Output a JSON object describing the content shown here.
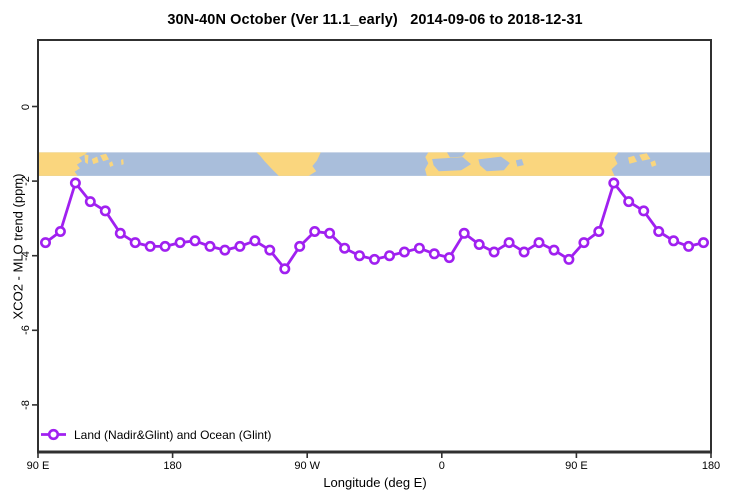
{
  "title": "30N-40N October (Ver 11.1_early)   2014-09-06 to 2018-12-31",
  "legend": {
    "label": "Land (Nadir&Glint) and Ocean (Glint)"
  },
  "chart_data": {
    "type": "line",
    "title": "30N-40N October (Ver 11.1_early)   2014-09-06 to 2018-12-31",
    "xlabel": "Longitude (deg E)",
    "ylabel": "XCO2 - MLO trend (ppm)",
    "grid": false,
    "legend_position": "bottom-left-inside",
    "x_axis": {
      "description": "Longitude axis starting at 90E, wrapping eastward 450 degrees to 180",
      "start_longitude": "90E",
      "span_deg": 450,
      "tick_positions_deg": [
        0,
        90,
        180,
        270,
        360,
        450
      ],
      "tick_labels": [
        "90 E",
        "180",
        "90 W",
        "0",
        "90 E",
        "180"
      ]
    },
    "y_axis": {
      "min": -9.25,
      "max": 1.75,
      "tick_values": [
        0,
        -2,
        -4,
        -6,
        -8
      ],
      "tick_labels": [
        "0",
        "-2",
        "-4",
        "-6",
        "-8"
      ]
    },
    "series": [
      {
        "name": "Land (Nadir&Glint) and Ocean (Glint)",
        "color": "#A020F0",
        "marker": "open-circle",
        "axis_deg_start": 5,
        "axis_deg_step": 10,
        "lon_labels": [
          "95E",
          "105E",
          "115E",
          "125E",
          "135E",
          "145E",
          "155E",
          "165E",
          "175E",
          "175W",
          "165W",
          "155W",
          "145W",
          "135W",
          "125W",
          "115W",
          "105W",
          "95W",
          "85W",
          "75W",
          "65W",
          "55W",
          "45W",
          "35W",
          "25W",
          "15W",
          "5W",
          "5E",
          "15E",
          "25E",
          "35E",
          "45E",
          "55E",
          "65E",
          "75E",
          "85E",
          "95E",
          "105E",
          "115E",
          "125E",
          "135E",
          "145E",
          "155E",
          "165E",
          "175E"
        ],
        "values": [
          -3.65,
          -3.35,
          -2.05,
          -2.55,
          -2.8,
          -3.4,
          -3.65,
          -3.75,
          -3.75,
          -3.65,
          -3.6,
          -3.75,
          -3.85,
          -3.75,
          -3.6,
          -3.85,
          -4.35,
          -3.75,
          -3.35,
          -3.4,
          -3.8,
          -4.0,
          -4.1,
          -4.0,
          -3.9,
          -3.8,
          -3.95,
          -4.05,
          -3.4,
          -3.7,
          -3.9,
          -3.65,
          -3.9,
          -3.65,
          -3.85,
          -4.1,
          -3.65,
          -3.35,
          -2.05,
          -2.55,
          -2.8,
          -3.35,
          -3.6,
          -3.75,
          -3.65
        ]
      }
    ],
    "map_band": {
      "description": "World coastline strip for 30N-40N drawn across the plot",
      "ocean_color": "#A9BEDB",
      "land_color": "#FAD67E",
      "top_value": -1.23,
      "bottom_value": -1.86,
      "land_polys": [
        [
          [
            0,
            0
          ],
          [
            33,
            0
          ],
          [
            30.5,
            0.12
          ],
          [
            27.5,
            0.22
          ],
          [
            29.5,
            0.38
          ],
          [
            26,
            0.52
          ],
          [
            28,
            0.68
          ],
          [
            24.5,
            0.82
          ],
          [
            26.5,
            1
          ],
          [
            0,
            1
          ]
        ],
        [
          [
            31,
            0.08
          ],
          [
            33.8,
            0.12
          ],
          [
            33.2,
            0.5
          ],
          [
            31.5,
            0.42
          ]
        ],
        [
          [
            36,
            0.28
          ],
          [
            39.5,
            0.18
          ],
          [
            40.5,
            0.42
          ],
          [
            37,
            0.5
          ]
        ],
        [
          [
            41.5,
            0.12
          ],
          [
            45.5,
            0.06
          ],
          [
            47.5,
            0.3
          ],
          [
            43.5,
            0.38
          ]
        ],
        [
          [
            47.5,
            0.45
          ],
          [
            49.5,
            0.38
          ],
          [
            50.5,
            0.56
          ],
          [
            48.2,
            0.62
          ]
        ],
        [
          [
            55.5,
            0.32
          ],
          [
            57,
            0.28
          ],
          [
            57.3,
            0.5
          ],
          [
            55.8,
            0.54
          ]
        ],
        [
          [
            146,
            0
          ],
          [
            189,
            0
          ],
          [
            186.5,
            0.35
          ],
          [
            183.5,
            0.58
          ],
          [
            186,
            0.8
          ],
          [
            181,
            1
          ],
          [
            161,
            1
          ],
          [
            156.5,
            0.72
          ],
          [
            151.5,
            0.38
          ],
          [
            148.5,
            0.14
          ]
        ],
        [
          [
            261,
            0
          ],
          [
            388,
            0
          ],
          [
            385.5,
            0.22
          ],
          [
            387.5,
            0.48
          ],
          [
            383.5,
            0.72
          ],
          [
            385.5,
            1
          ],
          [
            260,
            1
          ],
          [
            258.8,
            0.72
          ],
          [
            261,
            0.46
          ],
          [
            259,
            0.2
          ]
        ],
        [
          [
            394.5,
            0.22
          ],
          [
            398.5,
            0.14
          ],
          [
            400.5,
            0.4
          ],
          [
            395.5,
            0.48
          ]
        ],
        [
          [
            402,
            0.1
          ],
          [
            407,
            0.04
          ],
          [
            409.5,
            0.28
          ],
          [
            404,
            0.36
          ]
        ],
        [
          [
            409.5,
            0.42
          ],
          [
            412.5,
            0.34
          ],
          [
            413.5,
            0.55
          ],
          [
            410.5,
            0.62
          ]
        ]
      ],
      "ocean_holes": [
        [
          [
            263.5,
            0.28
          ],
          [
            284,
            0.2
          ],
          [
            289.5,
            0.5
          ],
          [
            283,
            0.76
          ],
          [
            268,
            0.8
          ],
          [
            264.5,
            0.55
          ]
        ],
        [
          [
            294.5,
            0.3
          ],
          [
            309.5,
            0.18
          ],
          [
            315.5,
            0.45
          ],
          [
            311.5,
            0.76
          ],
          [
            300,
            0.8
          ],
          [
            295.5,
            0.55
          ]
        ],
        [
          [
            319.5,
            0.34
          ],
          [
            323.5,
            0.28
          ],
          [
            324.8,
            0.54
          ],
          [
            320.5,
            0.6
          ]
        ],
        [
          [
            273.5,
            0
          ],
          [
            286,
            0
          ],
          [
            283.5,
            0.18
          ],
          [
            275.5,
            0.22
          ]
        ]
      ]
    },
    "axis_color": "#303030"
  }
}
